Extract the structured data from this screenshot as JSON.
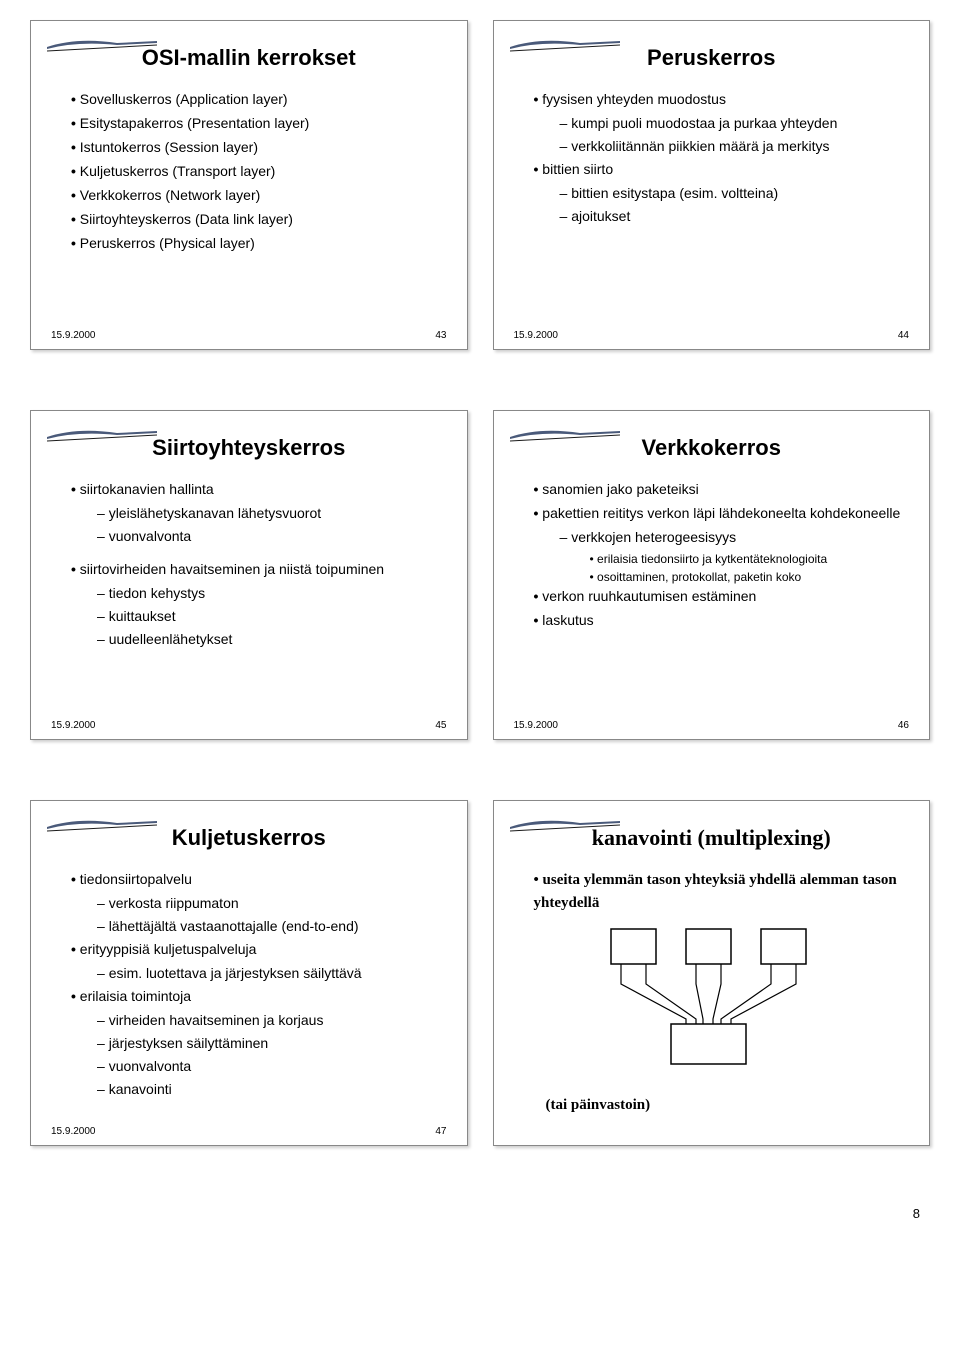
{
  "page_number": "8",
  "slides": [
    {
      "title": "OSI-mallin kerrokset",
      "title_style": "sans",
      "bullets": [
        {
          "t": "Sovelluskerros (Application layer)"
        },
        {
          "t": "Esitystapakerros (Presentation layer)"
        },
        {
          "t": "Istuntokerros (Session layer)"
        },
        {
          "t": "Kuljetuskerros (Transport layer)"
        },
        {
          "t": "Verkkokerros (Network layer)"
        },
        {
          "t": "Siirtoyhteyskerros (Data link layer)"
        },
        {
          "t": "Peruskerros (Physical layer)"
        }
      ],
      "date": "15.9.2000",
      "num": "43"
    },
    {
      "title": "Peruskerros",
      "title_style": "sans",
      "bullets": [
        {
          "t": "fyysisen yhteyden muodostus",
          "sub": [
            {
              "t": "kumpi puoli muodostaa ja purkaa yhteyden"
            },
            {
              "t": "verkkoliitännän piikkien määrä ja merkitys"
            }
          ]
        },
        {
          "t": "bittien siirto",
          "sub": [
            {
              "t": "bittien esitystapa (esim. voltteina)"
            },
            {
              "t": "ajoitukset"
            }
          ]
        }
      ],
      "date": "15.9.2000",
      "num": "44"
    },
    {
      "title": "Siirtoyhteyskerros",
      "title_style": "sans",
      "bullets": [
        {
          "t": "siirtokanavien hallinta",
          "sub": [
            {
              "t": "yleislähetyskanavan lähetysvuorot"
            },
            {
              "t": "vuonvalvonta"
            }
          ]
        },
        {
          "t": "",
          "spacer": true
        },
        {
          "t": "siirtovirheiden havaitseminen ja niistä toipuminen",
          "sub": [
            {
              "t": "tiedon kehystys"
            },
            {
              "t": "kuittaukset"
            },
            {
              "t": "uudelleenlähetykset"
            }
          ]
        }
      ],
      "date": "15.9.2000",
      "num": "45"
    },
    {
      "title": "Verkkokerros",
      "title_style": "sans",
      "bullets": [
        {
          "t": "sanomien jako paketeiksi"
        },
        {
          "t": "pakettien reititys verkon läpi lähdekoneelta kohdekoneelle",
          "sub": [
            {
              "t": "verkkojen heterogeesisyys",
              "sub3": [
                {
                  "t": "erilaisia tiedonsiirto ja kytkentäteknologioita"
                },
                {
                  "t": "osoittaminen, protokollat, paketin koko"
                }
              ]
            }
          ]
        },
        {
          "t": "verkon ruuhkautumisen estäminen"
        },
        {
          "t": "laskutus"
        }
      ],
      "date": "15.9.2000",
      "num": "46"
    },
    {
      "title": "Kuljetuskerros",
      "title_style": "sans",
      "bullets": [
        {
          "t": "tiedonsiirtopalvelu",
          "sub": [
            {
              "t": "verkosta riippumaton"
            },
            {
              "t": "lähettäjältä vastaanottajalle (end-to-end)"
            }
          ]
        },
        {
          "t": "erityyppisiä kuljetuspalveluja",
          "sub": [
            {
              "t": "esim. luotettava ja järjestyksen säilyttävä"
            }
          ]
        },
        {
          "t": "erilaisia toimintoja",
          "sub": [
            {
              "t": "virheiden havaitseminen ja korjaus"
            },
            {
              "t": "järjestyksen säilyttäminen"
            },
            {
              "t": "vuonvalvonta"
            },
            {
              "t": "kanavointi"
            }
          ]
        }
      ],
      "date": "15.9.2000",
      "num": "47"
    },
    {
      "title": "kanavointi (multiplexing)",
      "title_style": "serif",
      "top_bullets": [
        {
          "t": "useita ylemmän tason yhteyksiä yhdellä alemman tason yhteydellä"
        }
      ],
      "diagram": true,
      "bottom_text": "(tai päinvastoin)",
      "date": "",
      "num": ""
    }
  ],
  "colors": {
    "swoosh_fill": "#4a5a7a",
    "swoosh_line": "#1a1a1a",
    "border": "#888888",
    "text": "#000000",
    "bg": "#ffffff"
  }
}
